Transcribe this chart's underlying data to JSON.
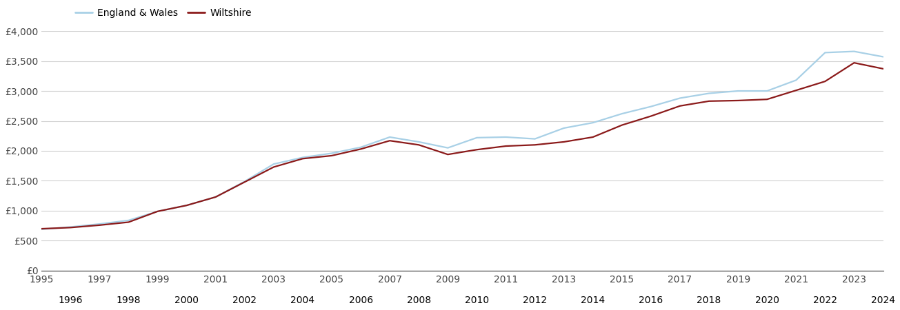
{
  "wiltshire_years": [
    1995,
    1996,
    1997,
    1998,
    1999,
    2000,
    2001,
    2002,
    2003,
    2004,
    2005,
    2006,
    2007,
    2008,
    2009,
    2010,
    2011,
    2012,
    2013,
    2014,
    2015,
    2016,
    2017,
    2018,
    2019,
    2020,
    2021,
    2022,
    2023,
    2024
  ],
  "wiltshire_values": [
    700,
    720,
    760,
    810,
    990,
    1090,
    1230,
    1480,
    1730,
    1870,
    1920,
    2030,
    2170,
    2100,
    1940,
    2020,
    2080,
    2100,
    2150,
    2230,
    2430,
    2580,
    2750,
    2830,
    2840,
    2860,
    3010,
    3160,
    3470,
    3370
  ],
  "england_years": [
    1995,
    1996,
    1997,
    1998,
    1999,
    2000,
    2001,
    2002,
    2003,
    2004,
    2005,
    2006,
    2007,
    2008,
    2009,
    2010,
    2011,
    2012,
    2013,
    2014,
    2015,
    2016,
    2017,
    2018,
    2019,
    2020,
    2021,
    2022,
    2023,
    2024
  ],
  "england_values": [
    690,
    730,
    780,
    840,
    990,
    1090,
    1230,
    1490,
    1780,
    1890,
    1960,
    2060,
    2230,
    2150,
    2050,
    2220,
    2230,
    2200,
    2380,
    2470,
    2620,
    2740,
    2880,
    2960,
    3000,
    3000,
    3180,
    3640,
    3660,
    3570
  ],
  "wiltshire_color": "#8B1A1A",
  "england_color": "#A8D0E6",
  "legend_wiltshire": "Wiltshire",
  "legend_england": "England & Wales",
  "ylim": [
    0,
    4000
  ],
  "yticks": [
    0,
    500,
    1000,
    1500,
    2000,
    2500,
    3000,
    3500,
    4000
  ],
  "ytick_labels": [
    "£0",
    "£500",
    "£1,000",
    "£1,500",
    "£2,000",
    "£2,500",
    "£3,000",
    "£3,500",
    "£4,000"
  ],
  "background_color": "#ffffff",
  "grid_color": "#d0d0d0",
  "line_width": 1.6,
  "odd_years": [
    1995,
    1997,
    1999,
    2001,
    2003,
    2005,
    2007,
    2009,
    2011,
    2013,
    2015,
    2017,
    2019,
    2021,
    2023
  ],
  "even_years": [
    1996,
    1998,
    2000,
    2002,
    2004,
    2006,
    2008,
    2010,
    2012,
    2014,
    2016,
    2018,
    2020,
    2022,
    2024
  ]
}
